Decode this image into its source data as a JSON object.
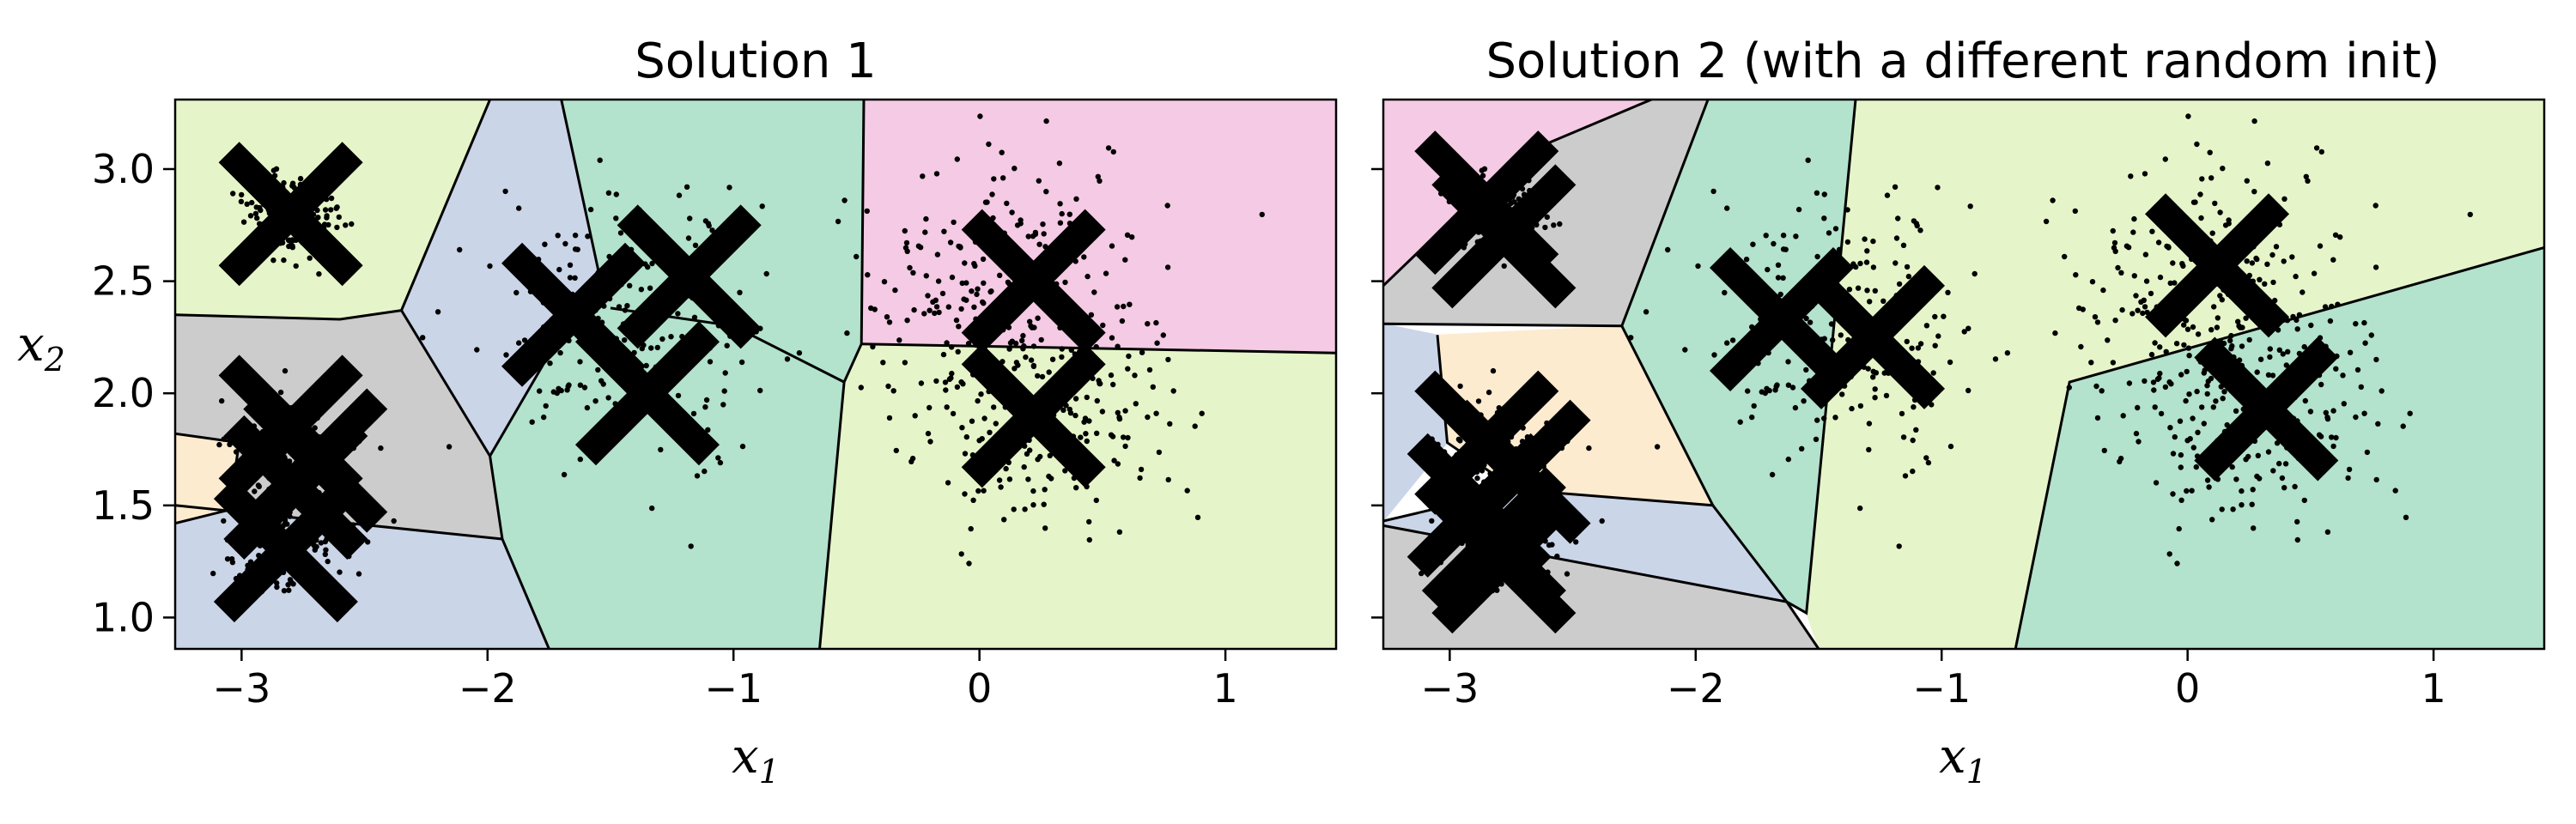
{
  "chart_data": [
    {
      "type": "scatter",
      "title": "Solution 1",
      "xlabel": "x",
      "xlabel_subscript": "1",
      "ylabel": "x",
      "ylabel_subscript": "2",
      "xlim": [
        -3.27,
        1.45
      ],
      "ylim": [
        0.86,
        3.31
      ],
      "xticks": [
        -3,
        -2,
        -1,
        0,
        1
      ],
      "xtick_labels": [
        "−3",
        "−2",
        "−1",
        "0",
        "1"
      ],
      "yticks": [
        1.0,
        1.5,
        2.0,
        2.5,
        3.0
      ],
      "ytick_labels": [
        "1.0",
        "1.5",
        "2.0",
        "2.5",
        "3.0"
      ],
      "show_yticklabels": true,
      "centroids": [
        {
          "x": -2.8,
          "y": 2.8
        },
        {
          "x": -2.8,
          "y": 1.85
        },
        {
          "x": -2.7,
          "y": 1.7
        },
        {
          "x": -2.78,
          "y": 1.58
        },
        {
          "x": -2.82,
          "y": 1.3
        },
        {
          "x": -1.65,
          "y": 2.35
        },
        {
          "x": -1.18,
          "y": 2.52
        },
        {
          "x": -1.35,
          "y": 2.0
        },
        {
          "x": 0.22,
          "y": 2.5
        },
        {
          "x": 0.22,
          "y": 1.9
        }
      ],
      "regions": [
        {
          "color": "#e6f5c9",
          "poly": [
            [
              -3.27,
              3.31
            ],
            [
              -1.99,
              3.31
            ],
            [
              -2.35,
              2.37
            ],
            [
              -2.6,
              2.33
            ],
            [
              -3.27,
              2.35
            ]
          ]
        },
        {
          "color": "#cccccc",
          "poly": [
            [
              -3.27,
              2.35
            ],
            [
              -2.6,
              2.33
            ],
            [
              -2.35,
              2.37
            ],
            [
              -1.99,
              1.72
            ],
            [
              -1.94,
              1.35
            ],
            [
              -3.27,
              1.5
            ]
          ]
        },
        {
          "color": "#fdebd0",
          "poly": [
            [
              -3.27,
              1.82
            ],
            [
              -3.01,
              1.78
            ],
            [
              -3.05,
              1.48
            ],
            [
              -3.27,
              1.42
            ]
          ]
        },
        {
          "color": "#cbd5e8",
          "poly": [
            [
              -3.27,
              1.42
            ],
            [
              -3.05,
              1.48
            ],
            [
              -1.94,
              1.35
            ],
            [
              -1.75,
              0.86
            ],
            [
              -3.27,
              0.86
            ]
          ]
        },
        {
          "color": "#cbd5e8",
          "poly": [
            [
              -2.35,
              2.37
            ],
            [
              -1.99,
              3.31
            ],
            [
              -1.7,
              3.31
            ],
            [
              -1.55,
              2.55
            ],
            [
              -1.99,
              1.72
            ]
          ]
        },
        {
          "color": "#b3e2cd",
          "poly": [
            [
              -1.7,
              3.31
            ],
            [
              -0.47,
              3.31
            ],
            [
              -0.48,
              2.22
            ],
            [
              -0.55,
              2.05
            ],
            [
              -0.65,
              0.86
            ],
            [
              -1.75,
              0.86
            ],
            [
              -1.94,
              1.35
            ],
            [
              -1.99,
              1.72
            ],
            [
              -1.55,
              2.55
            ]
          ]
        },
        {
          "color": "#f4cae4",
          "poly": [
            [
              -0.47,
              3.31
            ],
            [
              1.45,
              3.31
            ],
            [
              1.45,
              2.18
            ],
            [
              -0.48,
              2.22
            ]
          ]
        },
        {
          "color": "#e6f5c9",
          "poly": [
            [
              -0.48,
              2.22
            ],
            [
              1.45,
              2.18
            ],
            [
              1.45,
              0.86
            ],
            [
              -0.65,
              0.86
            ],
            [
              -0.55,
              2.05
            ]
          ]
        }
      ],
      "boundaries": [
        [
          [
            -1.99,
            3.31
          ],
          [
            -2.35,
            2.37
          ],
          [
            -2.6,
            2.33
          ],
          [
            -3.27,
            2.35
          ]
        ],
        [
          [
            -2.35,
            2.37
          ],
          [
            -1.99,
            1.72
          ],
          [
            -1.94,
            1.35
          ],
          [
            -1.75,
            0.86
          ]
        ],
        [
          [
            -3.27,
            1.5
          ],
          [
            -1.94,
            1.35
          ]
        ],
        [
          [
            -3.27,
            1.82
          ],
          [
            -3.01,
            1.78
          ],
          [
            -3.05,
            1.48
          ],
          [
            -3.27,
            1.42
          ]
        ],
        [
          [
            -1.7,
            3.31
          ],
          [
            -1.55,
            2.55
          ],
          [
            -1.99,
            1.72
          ]
        ],
        [
          [
            -1.5,
            2.38
          ],
          [
            -1.0,
            2.3
          ],
          [
            -0.55,
            2.05
          ]
        ],
        [
          [
            -0.47,
            3.31
          ],
          [
            -0.48,
            2.22
          ],
          [
            -0.55,
            2.05
          ],
          [
            -0.65,
            0.86
          ]
        ],
        [
          [
            -0.48,
            2.22
          ],
          [
            1.45,
            2.18
          ]
        ]
      ]
    },
    {
      "type": "scatter",
      "title": "Solution 2 (with a different random init)",
      "xlabel": "x",
      "xlabel_subscript": "1",
      "ylabel": "",
      "xlim": [
        -3.27,
        1.45
      ],
      "ylim": [
        0.86,
        3.31
      ],
      "xticks": [
        -3,
        -2,
        -1,
        0,
        1
      ],
      "xtick_labels": [
        "−3",
        "−2",
        "−1",
        "0",
        "1"
      ],
      "yticks": [
        1.0,
        1.5,
        2.0,
        2.5,
        3.0
      ],
      "show_yticklabels": false,
      "centroids": [
        {
          "x": -2.85,
          "y": 2.85
        },
        {
          "x": -2.78,
          "y": 2.7
        },
        {
          "x": -2.85,
          "y": 1.78
        },
        {
          "x": -2.72,
          "y": 1.65
        },
        {
          "x": -2.88,
          "y": 1.5
        },
        {
          "x": -2.82,
          "y": 1.35
        },
        {
          "x": -2.78,
          "y": 1.25
        },
        {
          "x": -1.65,
          "y": 2.33
        },
        {
          "x": -1.28,
          "y": 2.25
        },
        {
          "x": 0.12,
          "y": 2.57
        },
        {
          "x": 0.32,
          "y": 1.93
        }
      ],
      "regions": [
        {
          "color": "#f4cae4",
          "poly": [
            [
              -3.27,
              3.31
            ],
            [
              -2.18,
              3.31
            ],
            [
              -2.72,
              3.06
            ],
            [
              -3.27,
              2.48
            ]
          ]
        },
        {
          "color": "#cccccc",
          "poly": [
            [
              -3.27,
              2.48
            ],
            [
              -2.72,
              3.06
            ],
            [
              -2.18,
              3.31
            ],
            [
              -1.95,
              3.31
            ],
            [
              -2.3,
              2.3
            ],
            [
              -3.27,
              2.31
            ]
          ]
        },
        {
          "color": "#cbd5e8",
          "poly": [
            [
              -3.27,
              2.31
            ],
            [
              -3.05,
              2.26
            ],
            [
              -3.01,
              1.78
            ],
            [
              -3.27,
              1.43
            ]
          ]
        },
        {
          "color": "#fdebd0",
          "poly": [
            [
              -3.05,
              2.26
            ],
            [
              -2.3,
              2.3
            ],
            [
              -1.93,
              1.5
            ],
            [
              -2.73,
              1.57
            ],
            [
              -3.01,
              1.78
            ]
          ]
        },
        {
          "color": "#cbd5e8",
          "poly": [
            [
              -3.27,
              1.43
            ],
            [
              -2.73,
              1.57
            ],
            [
              -1.93,
              1.5
            ],
            [
              -1.63,
              1.07
            ],
            [
              -3.27,
              1.41
            ]
          ]
        },
        {
          "color": "#cccccc",
          "poly": [
            [
              -3.27,
              1.41
            ],
            [
              -1.63,
              1.07
            ],
            [
              -1.5,
              0.86
            ],
            [
              -3.27,
              0.86
            ]
          ]
        },
        {
          "color": "#b3e2cd",
          "poly": [
            [
              -1.95,
              3.31
            ],
            [
              -1.35,
              3.31
            ],
            [
              -1.55,
              1.02
            ],
            [
              -1.63,
              1.07
            ],
            [
              -1.93,
              1.5
            ],
            [
              -2.3,
              2.3
            ]
          ]
        },
        {
          "color": "#e6f5c9",
          "poly": [
            [
              -1.35,
              3.31
            ],
            [
              1.45,
              3.31
            ],
            [
              1.45,
              2.65
            ],
            [
              -0.48,
              2.05
            ],
            [
              -0.7,
              0.86
            ],
            [
              -1.5,
              0.86
            ],
            [
              -1.55,
              1.02
            ]
          ]
        },
        {
          "color": "#b3e2cd",
          "poly": [
            [
              -0.48,
              2.05
            ],
            [
              1.45,
              2.65
            ],
            [
              1.45,
              0.86
            ],
            [
              -0.7,
              0.86
            ]
          ]
        }
      ],
      "boundaries": [
        [
          [
            -2.18,
            3.31
          ],
          [
            -2.72,
            3.06
          ],
          [
            -3.27,
            2.48
          ]
        ],
        [
          [
            -1.95,
            3.31
          ],
          [
            -2.3,
            2.3
          ],
          [
            -3.27,
            2.31
          ]
        ],
        [
          [
            -3.05,
            2.26
          ],
          [
            -3.01,
            1.78
          ],
          [
            -2.73,
            1.57
          ],
          [
            -3.27,
            1.43
          ]
        ],
        [
          [
            -2.3,
            2.3
          ],
          [
            -1.93,
            1.5
          ],
          [
            -2.73,
            1.57
          ]
        ],
        [
          [
            -1.93,
            1.5
          ],
          [
            -1.63,
            1.07
          ],
          [
            -1.5,
            0.86
          ]
        ],
        [
          [
            -3.27,
            1.41
          ],
          [
            -1.63,
            1.07
          ]
        ],
        [
          [
            -1.35,
            3.31
          ],
          [
            -1.55,
            1.02
          ],
          [
            -1.63,
            1.07
          ]
        ],
        [
          [
            -0.7,
            0.86
          ],
          [
            -0.48,
            2.05
          ],
          [
            1.45,
            2.65
          ]
        ]
      ]
    }
  ]
}
